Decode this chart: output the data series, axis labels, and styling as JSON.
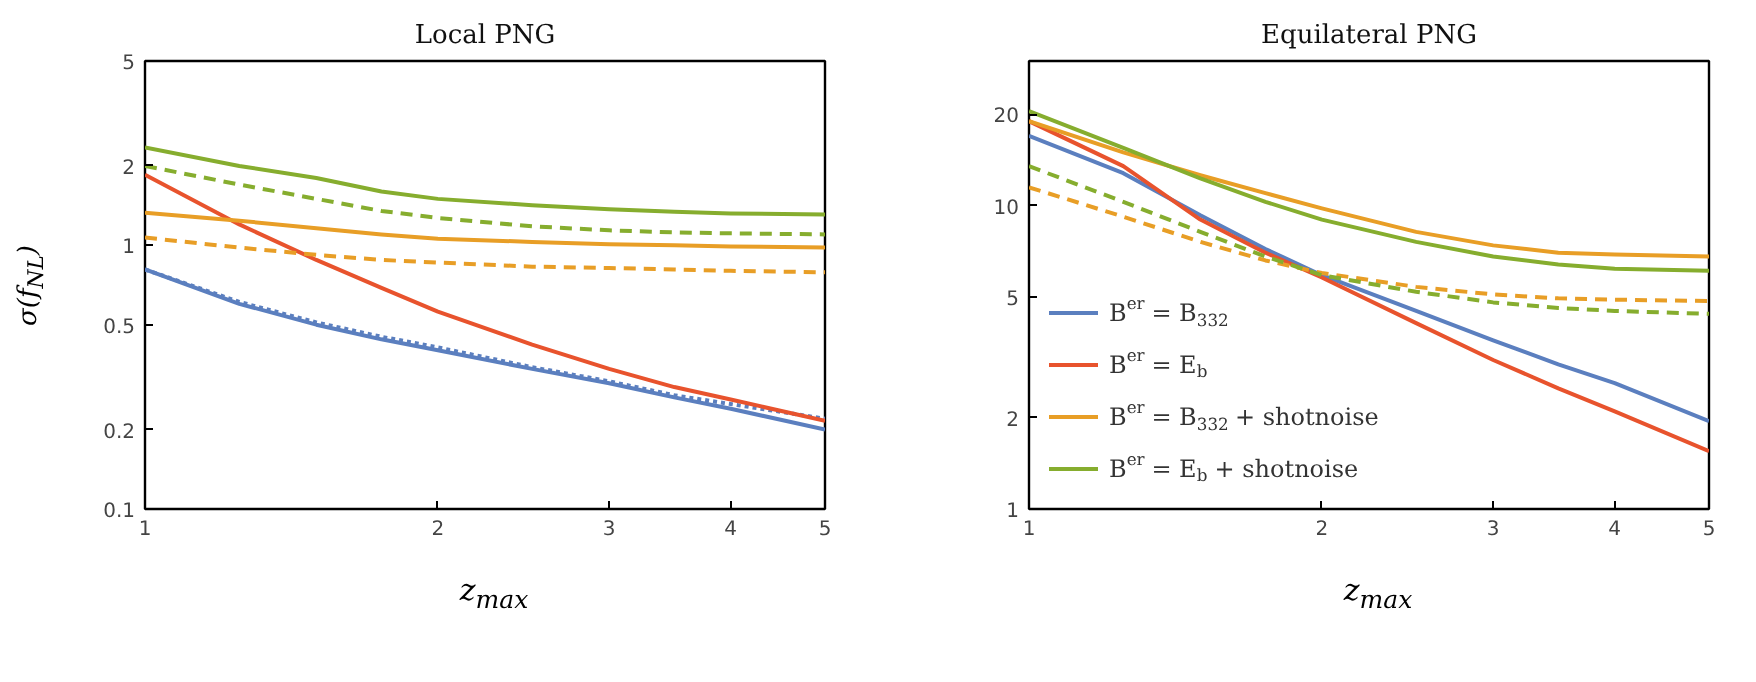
{
  "chart_data": [
    {
      "type": "line",
      "title": "Local PNG",
      "xlabel": "z$_{max}$",
      "ylabel": "σ(f$_{NL}$)",
      "log": "xy",
      "grid": false,
      "x": [
        1,
        1.25,
        1.5,
        1.75,
        2,
        2.5,
        3,
        3.5,
        4,
        5
      ],
      "xlim": [
        1,
        5
      ],
      "xticks": [
        1,
        2,
        3,
        4,
        5
      ],
      "ylim": [
        0.1,
        5
      ],
      "yticks": [
        0.1,
        0.2,
        0.5,
        1,
        2,
        5
      ],
      "series": [
        {
          "color": "#5b7fbf",
          "line_style": "solid",
          "values": [
            0.81,
            0.6,
            0.5,
            0.44,
            0.4,
            0.34,
            0.3,
            0.265,
            0.24,
            0.2
          ]
        },
        {
          "color": "#5b7fbf",
          "line_style": "dotted",
          "values": [
            0.81,
            0.61,
            0.51,
            0.45,
            0.41,
            0.345,
            0.305,
            0.27,
            0.25,
            0.22
          ]
        },
        {
          "color": "#e8532d",
          "line_style": "solid",
          "values": [
            1.85,
            1.2,
            0.88,
            0.69,
            0.56,
            0.42,
            0.34,
            0.29,
            0.26,
            0.216
          ]
        },
        {
          "color": "#e89e26",
          "line_style": "solid",
          "values": [
            1.33,
            1.24,
            1.16,
            1.1,
            1.06,
            1.03,
            1.01,
            1.0,
            0.99,
            0.98
          ]
        },
        {
          "color": "#e89e26",
          "line_style": "dashed",
          "values": [
            1.07,
            0.98,
            0.92,
            0.88,
            0.86,
            0.83,
            0.82,
            0.81,
            0.8,
            0.79
          ]
        },
        {
          "color": "#86ad2e",
          "line_style": "solid",
          "values": [
            2.35,
            2.0,
            1.8,
            1.6,
            1.5,
            1.42,
            1.37,
            1.34,
            1.32,
            1.31
          ]
        },
        {
          "color": "#86ad2e",
          "line_style": "dashed",
          "values": [
            2.0,
            1.7,
            1.5,
            1.35,
            1.27,
            1.18,
            1.14,
            1.12,
            1.11,
            1.1
          ]
        }
      ]
    },
    {
      "type": "line",
      "title": "Equilateral PNG",
      "xlabel": "z$_{max}$",
      "log": "xy",
      "grid": false,
      "legend": "bottom left",
      "x": [
        1,
        1.25,
        1.5,
        1.75,
        2,
        2.5,
        3,
        3.5,
        4,
        5
      ],
      "xlim": [
        1,
        5
      ],
      "xticks": [
        1,
        2,
        3,
        4,
        5
      ],
      "ylim": [
        1,
        30
      ],
      "yticks": [
        1,
        2,
        5,
        10,
        20
      ],
      "series": [
        {
          "name": "B$^{er}$ = B$_{332}$",
          "color": "#5b7fbf",
          "line_style": "solid",
          "values": [
            17,
            12.8,
            9.3,
            7.2,
            5.9,
            4.5,
            3.6,
            3.0,
            2.6,
            1.95
          ]
        },
        {
          "name": "B$^{er}$ = E$_{b}$",
          "color": "#e8532d",
          "line_style": "solid",
          "values": [
            19,
            13.5,
            9.0,
            7.0,
            5.8,
            4.1,
            3.1,
            2.5,
            2.1,
            1.55
          ]
        },
        {
          "name": "B$^{er}$ = B$_{332}$ + shotnoise",
          "color": "#e89e26",
          "line_style": "solid",
          "values": [
            19,
            15,
            12.6,
            11,
            9.8,
            8.2,
            7.4,
            7.0,
            6.9,
            6.8
          ]
        },
        {
          "name": "B$^{er}$ = E$_{b}$ + shotnoise",
          "color": "#86ad2e",
          "line_style": "solid",
          "values": [
            20.5,
            15.5,
            12.3,
            10.3,
            9.0,
            7.6,
            6.8,
            6.4,
            6.2,
            6.1
          ]
        },
        {
          "color": "#e89e26",
          "line_style": "dashed",
          "values": [
            11.5,
            9.2,
            7.6,
            6.6,
            6.0,
            5.4,
            5.1,
            4.95,
            4.9,
            4.85
          ]
        },
        {
          "color": "#86ad2e",
          "line_style": "dashed",
          "values": [
            13.5,
            10.3,
            8.2,
            6.8,
            5.9,
            5.2,
            4.8,
            4.6,
            4.5,
            4.4
          ]
        }
      ]
    }
  ]
}
